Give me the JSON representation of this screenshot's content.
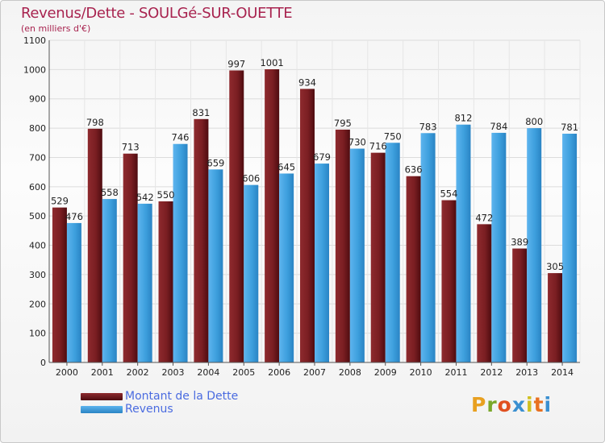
{
  "header": {
    "title": "Revenus/Dette - SOULGé-SUR-OUETTE",
    "subtitle": "(en milliers d'€)"
  },
  "logo_text": "Proxiti",
  "colors": {
    "dette": "#7a1e22",
    "revenus": "#3d9fdd",
    "title": "#a8234f",
    "legend_text": "#4a6be0"
  },
  "chart_data": {
    "type": "bar",
    "title": "Revenus/Dette - SOULGé-SUR-OUETTE",
    "ylabel": "(en milliers d'€)",
    "categories": [
      "2000",
      "2001",
      "2002",
      "2003",
      "2004",
      "2005",
      "2006",
      "2007",
      "2008",
      "2009",
      "2010",
      "2011",
      "2012",
      "2013",
      "2014"
    ],
    "series": [
      {
        "name": "Montant de la Dette",
        "values": [
          529,
          798,
          713,
          550,
          831,
          997,
          1001,
          934,
          795,
          716,
          636,
          554,
          472,
          389,
          305
        ]
      },
      {
        "name": "Revenus",
        "values": [
          476,
          558,
          542,
          746,
          659,
          606,
          645,
          679,
          730,
          750,
          783,
          812,
          784,
          800,
          781
        ]
      }
    ],
    "ylim": [
      0,
      1100
    ],
    "yticks": [
      0,
      100,
      200,
      300,
      400,
      500,
      600,
      700,
      800,
      900,
      1000,
      1100
    ],
    "grid": true,
    "legend_position": "bottom-left"
  }
}
